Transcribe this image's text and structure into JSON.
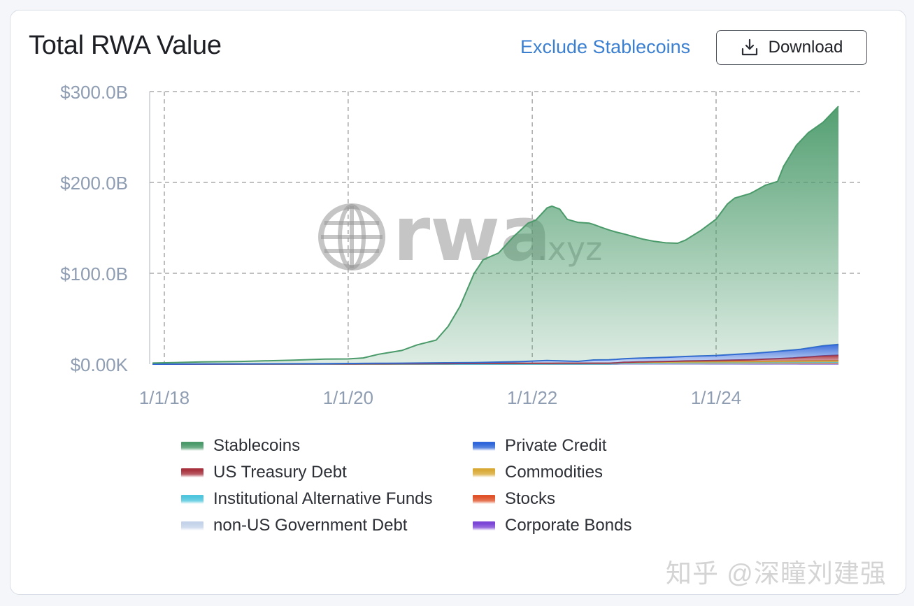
{
  "header": {
    "title": "Total RWA Value",
    "exclude_label": "Exclude Stablecoins",
    "download_label": "Download",
    "download_icon": "download-icon"
  },
  "logo": {
    "text": "rwa",
    "suffix": ".xyz",
    "icon": "globe-icon"
  },
  "watermark": "知乎 @深瞳刘建强",
  "chart_data": {
    "type": "area",
    "stacked": true,
    "ylim": [
      0,
      300
    ],
    "yticks": [
      {
        "value": 0,
        "label": "$0.00K"
      },
      {
        "value": 100,
        "label": "$100.0B"
      },
      {
        "value": 200,
        "label": "$200.0B"
      },
      {
        "value": 300,
        "label": "$300.0B"
      }
    ],
    "xlim": [
      "2018-01-01",
      "2025-05-01"
    ],
    "xticks": [
      {
        "value": "2018-01-01",
        "label": "1/1/18"
      },
      {
        "value": "2020-01-01",
        "label": "1/1/20"
      },
      {
        "value": "2022-01-01",
        "label": "1/1/22"
      },
      {
        "value": "2024-01-01",
        "label": "1/1/24"
      }
    ],
    "grid": true,
    "legend_position": "bottom",
    "series": [
      {
        "name": "Stablecoins",
        "color": "#4a9a6a",
        "points": [
          [
            "2017-11-15",
            1.2
          ],
          [
            "2018-06-01",
            2.3
          ],
          [
            "2018-11-01",
            2.7
          ],
          [
            "2019-06-01",
            4
          ],
          [
            "2019-10-01",
            5
          ],
          [
            "2020-01-01",
            5
          ],
          [
            "2020-03-01",
            6
          ],
          [
            "2020-05-01",
            10
          ],
          [
            "2020-08-01",
            14
          ],
          [
            "2020-10-01",
            20
          ],
          [
            "2020-12-15",
            25
          ],
          [
            "2021-02-01",
            40
          ],
          [
            "2021-03-20",
            62
          ],
          [
            "2021-05-15",
            98
          ],
          [
            "2021-06-20",
            113
          ],
          [
            "2021-08-20",
            120
          ],
          [
            "2021-10-20",
            138
          ],
          [
            "2021-12-15",
            152
          ],
          [
            "2022-01-15",
            155
          ],
          [
            "2022-03-01",
            168
          ],
          [
            "2022-03-20",
            170
          ],
          [
            "2022-04-20",
            167
          ],
          [
            "2022-05-20",
            156
          ],
          [
            "2022-07-01",
            153
          ],
          [
            "2022-08-15",
            151
          ],
          [
            "2022-10-01",
            146
          ],
          [
            "2022-12-01",
            140
          ],
          [
            "2023-01-15",
            136
          ],
          [
            "2023-03-15",
            131
          ],
          [
            "2023-05-01",
            128
          ],
          [
            "2023-06-15",
            126
          ],
          [
            "2023-08-01",
            125
          ],
          [
            "2023-09-01",
            128
          ],
          [
            "2023-11-01",
            138
          ],
          [
            "2024-01-01",
            150
          ],
          [
            "2024-02-15",
            166
          ],
          [
            "2024-03-15",
            172
          ],
          [
            "2024-05-15",
            176
          ],
          [
            "2024-07-15",
            184
          ],
          [
            "2024-09-01",
            187
          ],
          [
            "2024-09-25",
            203
          ],
          [
            "2024-11-15",
            225
          ],
          [
            "2025-01-01",
            237
          ],
          [
            "2025-03-01",
            246
          ],
          [
            "2025-05-01",
            262
          ]
        ]
      },
      {
        "name": "Private Credit",
        "color": "#2f66d9",
        "points": [
          [
            "2017-11-15",
            0
          ],
          [
            "2019-06-01",
            0.2
          ],
          [
            "2020-06-01",
            0.5
          ],
          [
            "2021-06-01",
            1
          ],
          [
            "2021-12-01",
            2
          ],
          [
            "2022-03-01",
            3
          ],
          [
            "2022-07-01",
            2
          ],
          [
            "2022-09-01",
            3.5
          ],
          [
            "2023-06-01",
            4.5
          ],
          [
            "2024-01-01",
            5.5
          ],
          [
            "2024-06-01",
            7
          ],
          [
            "2024-12-01",
            9
          ],
          [
            "2025-03-01",
            11
          ],
          [
            "2025-05-01",
            12
          ]
        ]
      },
      {
        "name": "US Treasury Debt",
        "color": "#a8323e",
        "points": [
          [
            "2017-11-15",
            0
          ],
          [
            "2022-12-01",
            0
          ],
          [
            "2023-03-01",
            0.4
          ],
          [
            "2023-09-01",
            0.9
          ],
          [
            "2024-01-01",
            1.3
          ],
          [
            "2024-06-01",
            2
          ],
          [
            "2024-11-01",
            3.5
          ],
          [
            "2025-01-01",
            4.5
          ],
          [
            "2025-03-01",
            5.5
          ],
          [
            "2025-05-01",
            6
          ]
        ]
      },
      {
        "name": "Commodities",
        "color": "#d9a936",
        "points": [
          [
            "2017-11-15",
            0
          ],
          [
            "2020-06-01",
            0.4
          ],
          [
            "2022-01-01",
            0.9
          ],
          [
            "2023-06-01",
            1
          ],
          [
            "2024-06-01",
            1.3
          ],
          [
            "2025-05-01",
            1.6
          ]
        ]
      },
      {
        "name": "Institutional Alternative Funds",
        "color": "#4fc6dd",
        "points": [
          [
            "2017-11-15",
            0
          ],
          [
            "2023-06-01",
            0
          ],
          [
            "2024-06-01",
            0.4
          ],
          [
            "2025-05-01",
            1
          ]
        ]
      },
      {
        "name": "Stocks",
        "color": "#e0532a",
        "points": [
          [
            "2017-11-15",
            0
          ],
          [
            "2022-11-01",
            0
          ],
          [
            "2023-01-01",
            0.8
          ],
          [
            "2023-09-01",
            1.2
          ],
          [
            "2024-06-01",
            0.9
          ],
          [
            "2025-05-01",
            0.6
          ]
        ]
      },
      {
        "name": "non-US Government Debt",
        "color": "#c4d3ea",
        "points": [
          [
            "2017-11-15",
            0
          ],
          [
            "2023-01-01",
            0.1
          ],
          [
            "2025-05-01",
            0.4
          ]
        ]
      },
      {
        "name": "Corporate Bonds",
        "color": "#7b45d6",
        "points": [
          [
            "2017-11-15",
            0
          ],
          [
            "2024-01-01",
            0.05
          ],
          [
            "2025-05-01",
            0.2
          ]
        ]
      }
    ]
  }
}
